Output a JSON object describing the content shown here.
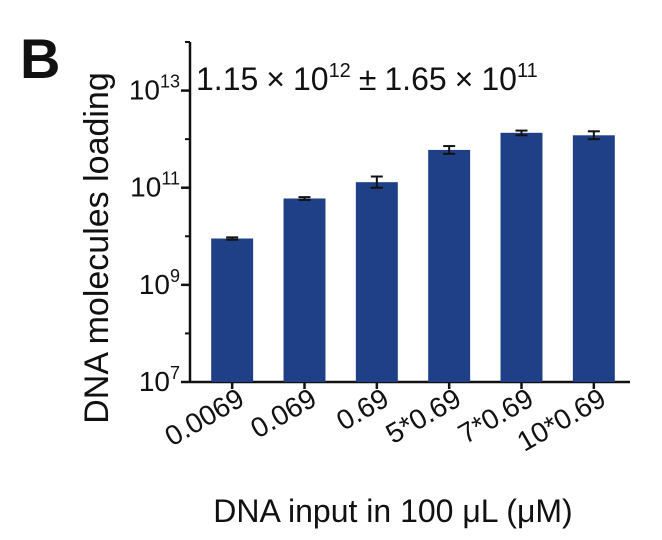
{
  "panel_label": "B",
  "chart_data": {
    "type": "bar",
    "title": "",
    "annotation": {
      "mean_mantissa": "1.15",
      "mean_exponent": "12",
      "sd_mantissa": "1.65",
      "sd_exponent": "11",
      "times": "×",
      "plusminus": "±",
      "base": "10"
    },
    "xlabel": "DNA input in 100 μL (μM)",
    "ylabel": "DNA molecules loading",
    "yscale": "log",
    "ylim": [
      10000000,
      100000000000000
    ],
    "yticks_major": [
      {
        "value": 10000000,
        "base": "10",
        "exp": "7"
      },
      {
        "value": 1000000000,
        "base": "10",
        "exp": "9"
      },
      {
        "value": 100000000000,
        "base": "10",
        "exp": "11"
      },
      {
        "value": 10000000000000,
        "base": "10",
        "exp": "13"
      }
    ],
    "yticks_minor": [
      100000000,
      10000000000,
      1000000000000,
      100000000000000
    ],
    "categories": [
      "0.0069",
      "0.069",
      "0.69",
      "5*0.69",
      "7*0.69",
      "10*0.69"
    ],
    "values": [
      9000000000,
      60000000000,
      130000000000,
      600000000000,
      1350000000000,
      1200000000000
    ],
    "error_low": [
      8500000000,
      56000000000,
      100000000000,
      500000000000,
      1200000000000,
      1000000000000
    ],
    "error_high": [
      9500000000,
      64000000000,
      170000000000,
      720000000000,
      1500000000000,
      1450000000000
    ],
    "bar_color": "#1f3f87",
    "grid": false,
    "legend": "none"
  }
}
